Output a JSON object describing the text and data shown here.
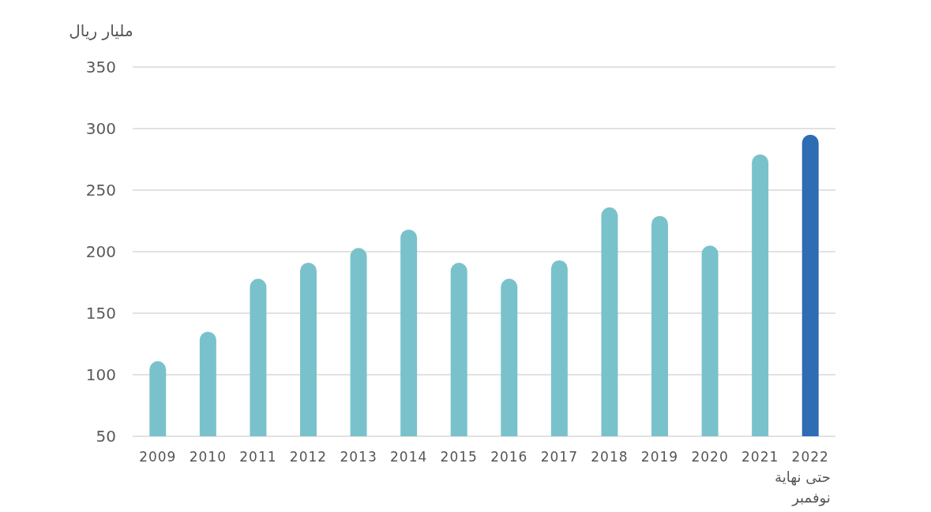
{
  "chart_data": {
    "type": "bar",
    "ylabel": "مليار ريال",
    "categories": [
      "2009",
      "2010",
      "2011",
      "2012",
      "2013",
      "2014",
      "2015",
      "2016",
      "2017",
      "2018",
      "2019",
      "2020",
      "2021",
      "2022\nحتى نهاية\nنوفمبر"
    ],
    "values": [
      111,
      135,
      178,
      191,
      203,
      218,
      191,
      178,
      193,
      236,
      229,
      205,
      279,
      295
    ],
    "colors": [
      "#7ac2cb",
      "#7ac2cb",
      "#7ac2cb",
      "#7ac2cb",
      "#7ac2cb",
      "#7ac2cb",
      "#7ac2cb",
      "#7ac2cb",
      "#7ac2cb",
      "#7ac2cb",
      "#7ac2cb",
      "#7ac2cb",
      "#7ac2cb",
      "#2e6cb4"
    ],
    "ylim": [
      50,
      350
    ],
    "yticks": [
      50,
      100,
      150,
      200,
      250,
      300,
      350
    ],
    "grid": "y"
  }
}
